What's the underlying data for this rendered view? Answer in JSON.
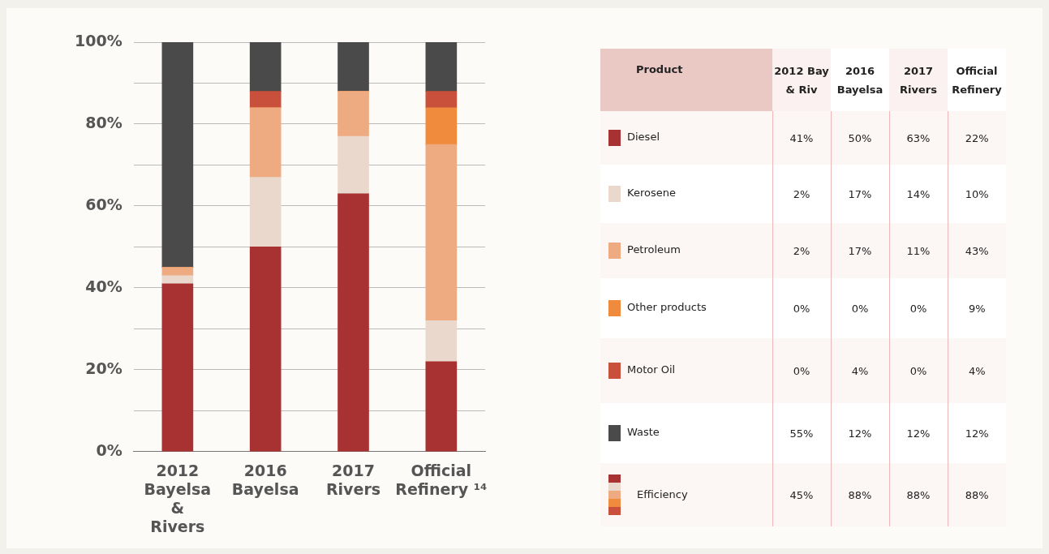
{
  "chart_data": {
    "type": "bar",
    "stacked": true,
    "categories": [
      "2012 Bayelsa & Rivers",
      "2016 Bayelsa",
      "2017 Rivers",
      "Official Refinery ¹⁴"
    ],
    "series": [
      {
        "name": "Diesel",
        "color": "#a83232",
        "values": [
          41,
          50,
          63,
          22
        ]
      },
      {
        "name": "Kerosene",
        "color": "#ead8cc",
        "values": [
          2,
          17,
          14,
          10
        ]
      },
      {
        "name": "Petroleum",
        "color": "#eeaa80",
        "values": [
          2,
          17,
          11,
          43
        ]
      },
      {
        "name": "Other products",
        "color": "#f08a3c",
        "values": [
          0,
          0,
          0,
          9
        ]
      },
      {
        "name": "Motor Oil",
        "color": "#c9503a",
        "values": [
          0,
          4,
          0,
          4
        ]
      },
      {
        "name": "Waste",
        "color": "#4a4a4a",
        "values": [
          55,
          12,
          12,
          12
        ]
      }
    ],
    "ylim": [
      0,
      100
    ],
    "yticks": [
      {
        "value": 0,
        "label": "0%"
      },
      {
        "value": 10,
        "label": null
      },
      {
        "value": 20,
        "label": "20%"
      },
      {
        "value": 30,
        "label": null
      },
      {
        "value": 40,
        "label": "40%"
      },
      {
        "value": 50,
        "label": null
      },
      {
        "value": 60,
        "label": "60%"
      },
      {
        "value": 70,
        "label": null
      },
      {
        "value": 80,
        "label": "80%"
      },
      {
        "value": 90,
        "label": null
      },
      {
        "value": 100,
        "label": "100%"
      }
    ],
    "grid": "y",
    "legend": "right",
    "legend_title": "Product",
    "annotations": [
      "2012 Bay & Riv",
      "2016 Bayelsa",
      "2017 Rivers",
      "Official Refinery",
      "Efficiency",
      "45%",
      "88%",
      "88%",
      "88%",
      "41%",
      "50%",
      "63%",
      "22%",
      "2%",
      "17%",
      "14%",
      "10%",
      "2%",
      "17%",
      "11%",
      "43%",
      "0%",
      "0%",
      "0%",
      "9%",
      "0%",
      "4%",
      "0%",
      "4%",
      "55%",
      "12%",
      "12%",
      "12%"
    ]
  }
}
